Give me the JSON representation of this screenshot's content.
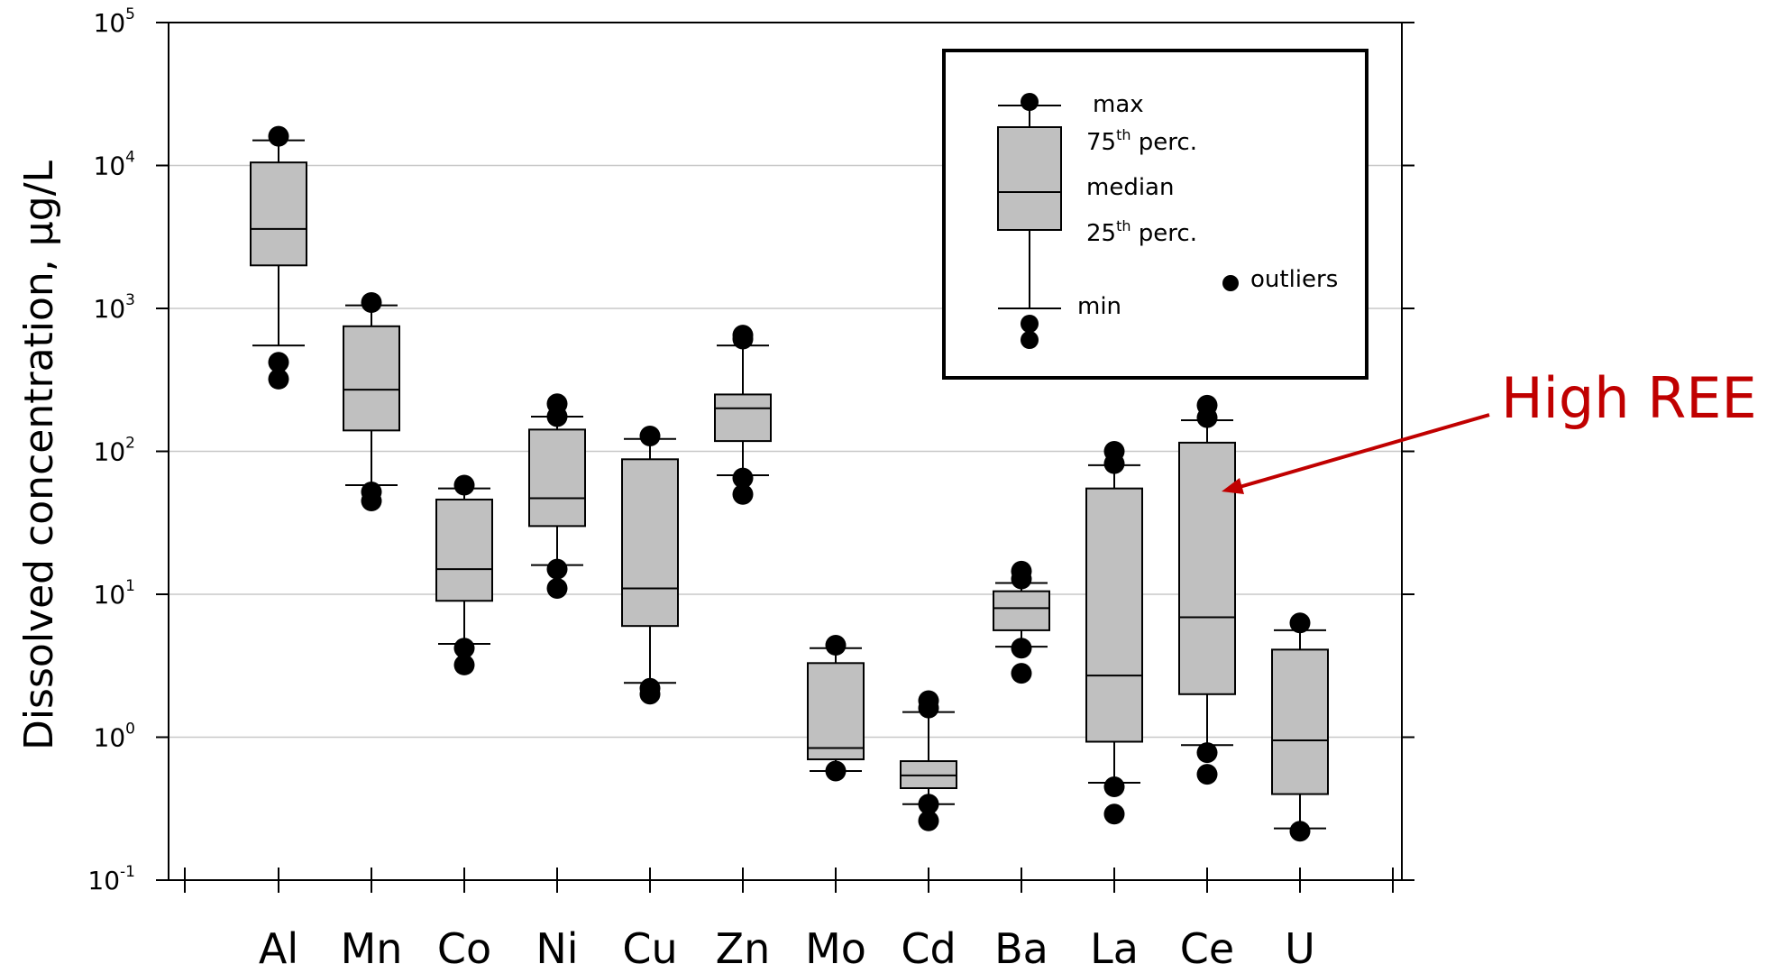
{
  "chart_data": {
    "type": "box",
    "ylabel": "Dissolved concentration, µg/L",
    "xlabel": "",
    "yscale": "log",
    "ylim": [
      0.1,
      100000
    ],
    "ytick_labels": [
      {
        "base": "10",
        "exp": "-1"
      },
      {
        "base": "10",
        "exp": "0"
      },
      {
        "base": "10",
        "exp": "1"
      },
      {
        "base": "10",
        "exp": "2"
      },
      {
        "base": "10",
        "exp": "3"
      },
      {
        "base": "10",
        "exp": "4"
      },
      {
        "base": "10",
        "exp": "5"
      }
    ],
    "grid": "horizontal",
    "categories": [
      "Al",
      "Mn",
      "Co",
      "Ni",
      "Cu",
      "Zn",
      "Mo",
      "Cd",
      "Ba",
      "La",
      "Ce",
      "U"
    ],
    "boxes": [
      {
        "category": "Al",
        "min": 550,
        "q1": 2000,
        "median": 3600,
        "q3": 10500,
        "max": 15000,
        "outliers": [
          16000,
          420,
          320
        ]
      },
      {
        "category": "Mn",
        "min": 58,
        "q1": 140,
        "median": 270,
        "q3": 750,
        "max": 1050,
        "outliers": [
          1100,
          52,
          45
        ]
      },
      {
        "category": "Co",
        "min": 4.5,
        "q1": 9,
        "median": 15,
        "q3": 46,
        "max": 55,
        "outliers": [
          58,
          4.2,
          3.2
        ]
      },
      {
        "category": "Ni",
        "min": 16,
        "q1": 30,
        "median": 47,
        "q3": 142,
        "max": 175,
        "outliers": [
          215,
          175,
          15,
          11
        ]
      },
      {
        "category": "Cu",
        "min": 2.4,
        "q1": 6,
        "median": 11,
        "q3": 88,
        "max": 122,
        "outliers": [
          128,
          2.2,
          2.0
        ]
      },
      {
        "category": "Zn",
        "min": 68,
        "q1": 118,
        "median": 200,
        "q3": 250,
        "max": 550,
        "outliers": [
          650,
          610,
          65,
          50
        ]
      },
      {
        "category": "Mo",
        "min": 0.58,
        "q1": 0.7,
        "median": 0.84,
        "q3": 3.3,
        "max": 4.2,
        "outliers": [
          4.4,
          0.58
        ]
      },
      {
        "category": "Cd",
        "min": 0.34,
        "q1": 0.44,
        "median": 0.54,
        "q3": 0.68,
        "max": 1.5,
        "outliers": [
          1.8,
          1.6,
          0.34,
          0.26
        ]
      },
      {
        "category": "Ba",
        "min": 4.3,
        "q1": 5.6,
        "median": 8,
        "q3": 10.5,
        "max": 12,
        "outliers": [
          14.5,
          12.8,
          4.2,
          2.8
        ]
      },
      {
        "category": "La",
        "min": 0.48,
        "q1": 0.93,
        "median": 2.7,
        "q3": 55,
        "max": 80,
        "outliers": [
          100,
          82,
          0.45,
          0.29
        ]
      },
      {
        "category": "Ce",
        "min": 0.88,
        "q1": 2.0,
        "median": 6.9,
        "q3": 115,
        "max": 165,
        "outliers": [
          210,
          172,
          0.78,
          0.55
        ]
      },
      {
        "category": "U",
        "min": 0.23,
        "q1": 0.4,
        "median": 0.95,
        "q3": 4.1,
        "max": 5.6,
        "outliers": [
          6.3,
          0.22
        ]
      }
    ],
    "legend": {
      "placement": "top-right",
      "max_label": "max",
      "p75_label": "75",
      "p75_sup": "th",
      "p75_suffix": " perc.",
      "median_label": "median",
      "p25_label": "25",
      "p25_sup": "th",
      "p25_suffix": " perc.",
      "min_label": "min",
      "outliers_label": "outliers"
    },
    "annotation": {
      "text": "High REE",
      "points_to": "Ce"
    },
    "colors": {
      "box_fill": "#c0c0c0",
      "stroke": "#000000",
      "grid": "#c8c8c8",
      "annotation": "#c00000"
    }
  }
}
